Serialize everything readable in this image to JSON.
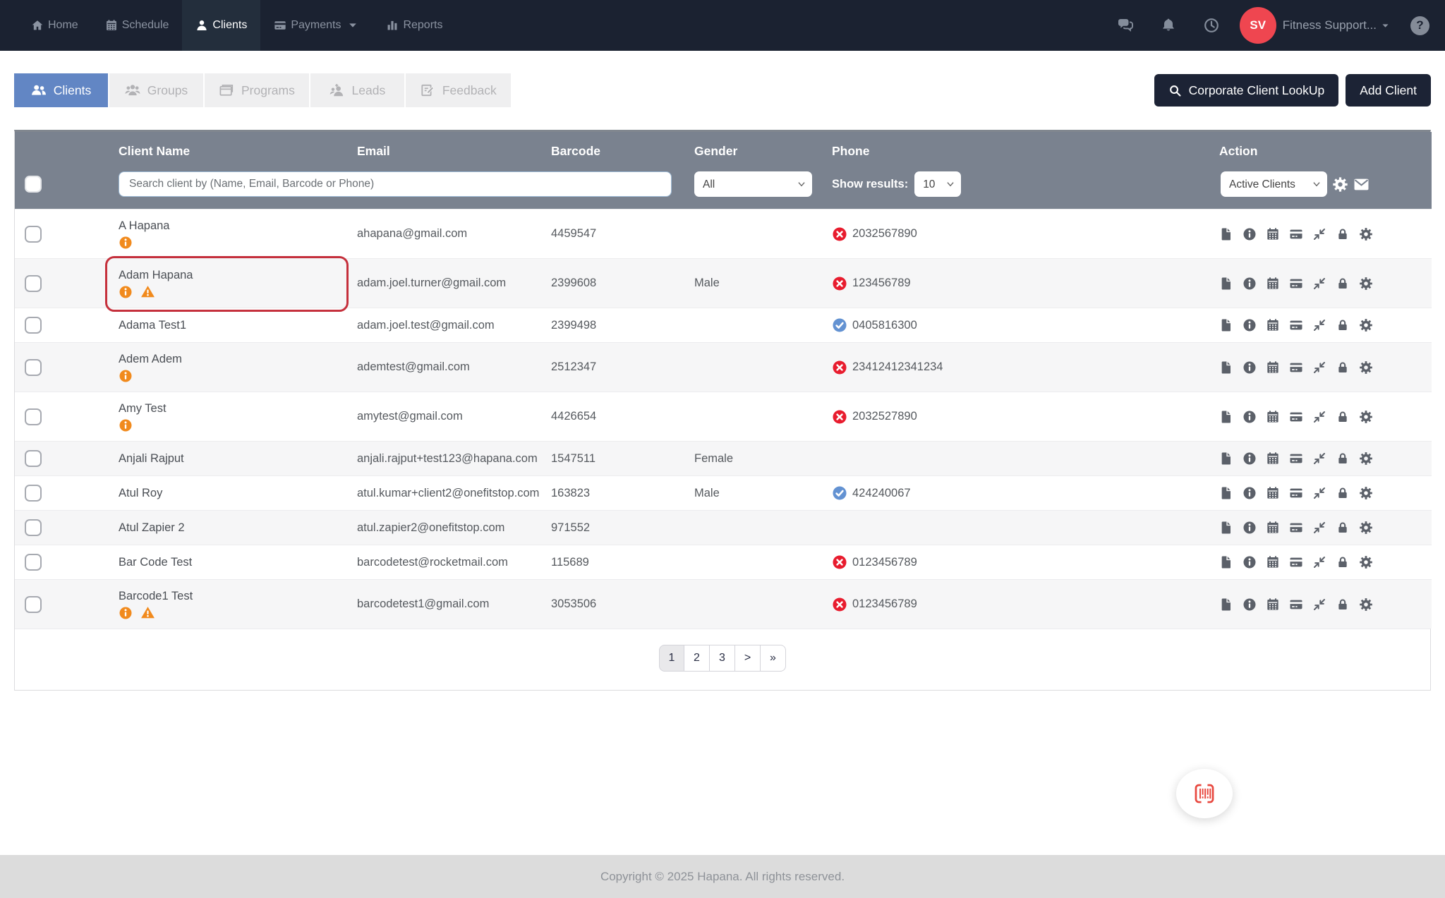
{
  "nav": {
    "items": [
      {
        "label": "Home",
        "icon": "home",
        "active": false,
        "caret": false
      },
      {
        "label": "Schedule",
        "icon": "calendar",
        "active": false,
        "caret": false
      },
      {
        "label": "Clients",
        "icon": "user",
        "active": true,
        "caret": false
      },
      {
        "label": "Payments",
        "icon": "credit-card",
        "active": false,
        "caret": true
      },
      {
        "label": "Reports",
        "icon": "bar-chart",
        "active": false,
        "caret": false
      }
    ],
    "right_icons": [
      "chat",
      "bell",
      "clock"
    ],
    "avatar_initials": "SV",
    "account_name": "Fitness Support...",
    "help_glyph": "?"
  },
  "tabs": [
    {
      "label": "Clients",
      "icon": "users",
      "active": true
    },
    {
      "label": "Groups",
      "icon": "users-group",
      "active": false
    },
    {
      "label": "Programs",
      "icon": "window",
      "active": false
    },
    {
      "label": "Leads",
      "icon": "user-plus",
      "active": false
    },
    {
      "label": "Feedback",
      "icon": "edit-doc",
      "active": false
    }
  ],
  "toolbar": {
    "corporate_lookup_label": "Corporate Client LookUp",
    "add_client_label": "Add Client"
  },
  "table": {
    "columns": [
      "Client Name",
      "Email",
      "Barcode",
      "Gender",
      "Phone",
      "Action"
    ],
    "filters": {
      "search_placeholder": "Search client by (Name, Email, Barcode or Phone)",
      "gender_value": "All",
      "show_results_label": "Show results:",
      "show_results_value": "10",
      "action_value": "Active Clients"
    },
    "row_actions": [
      "file",
      "info-circle",
      "calendar",
      "credit-card",
      "compress",
      "lock",
      "gear"
    ],
    "rows": [
      {
        "name": "A Hapana",
        "info": true,
        "warning": false,
        "email": "ahapana@gmail.com",
        "barcode": "4459547",
        "gender": "",
        "phone": "2032567890",
        "phone_status": "invalid",
        "highlighted": false
      },
      {
        "name": "Adam Hapana",
        "info": true,
        "warning": true,
        "email": "adam.joel.turner@gmail.com",
        "barcode": "2399608",
        "gender": "Male",
        "phone": "123456789",
        "phone_status": "invalid",
        "highlighted": true
      },
      {
        "name": "Adama Test1",
        "info": false,
        "warning": false,
        "email": "adam.joel.test@gmail.com",
        "barcode": "2399498",
        "gender": "",
        "phone": "0405816300",
        "phone_status": "verified",
        "highlighted": false
      },
      {
        "name": "Adem Adem",
        "info": true,
        "warning": false,
        "email": "ademtest@gmail.com",
        "barcode": "2512347",
        "gender": "",
        "phone": "23412412341234",
        "phone_status": "invalid",
        "highlighted": false
      },
      {
        "name": "Amy Test",
        "info": true,
        "warning": false,
        "email": "amytest@gmail.com",
        "barcode": "4426654",
        "gender": "",
        "phone": "2032527890",
        "phone_status": "invalid",
        "highlighted": false
      },
      {
        "name": "Anjali Rajput",
        "info": false,
        "warning": false,
        "email": "anjali.rajput+test123@hapana.com",
        "barcode": "1547511",
        "gender": "Female",
        "phone": "",
        "phone_status": null,
        "highlighted": false
      },
      {
        "name": "Atul Roy",
        "info": false,
        "warning": false,
        "email": "atul.kumar+client2@onefitstop.com",
        "barcode": "163823",
        "gender": "Male",
        "phone": "424240067",
        "phone_status": "verified",
        "highlighted": false
      },
      {
        "name": "Atul Zapier 2",
        "info": false,
        "warning": false,
        "email": "atul.zapier2@onefitstop.com",
        "barcode": "971552",
        "gender": "",
        "phone": "",
        "phone_status": null,
        "highlighted": false
      },
      {
        "name": "Bar Code Test",
        "info": false,
        "warning": false,
        "email": "barcodetest@rocketmail.com",
        "barcode": "115689",
        "gender": "",
        "phone": "0123456789",
        "phone_status": "invalid",
        "highlighted": false
      },
      {
        "name": "Barcode1 Test",
        "info": true,
        "warning": true,
        "email": "barcodetest1@gmail.com",
        "barcode": "3053506",
        "gender": "",
        "phone": "0123456789",
        "phone_status": "invalid",
        "highlighted": false
      }
    ]
  },
  "pagination": {
    "pages": [
      "1",
      "2",
      "3",
      ">",
      "»"
    ],
    "active": "1"
  },
  "footer": {
    "copyright": "Copyright © 2025 Hapana. All rights reserved."
  },
  "colors": {
    "nav_bg": "#1b2231",
    "active_tab_blue": "#6286c4",
    "table_header_gray": "#7a828f",
    "invalid_red": "#e81c2e",
    "verified_blue": "#6392d2",
    "warning_orange": "#f18a1d",
    "highlight_red": "#c5303c",
    "avatar_red": "#ef4650"
  }
}
